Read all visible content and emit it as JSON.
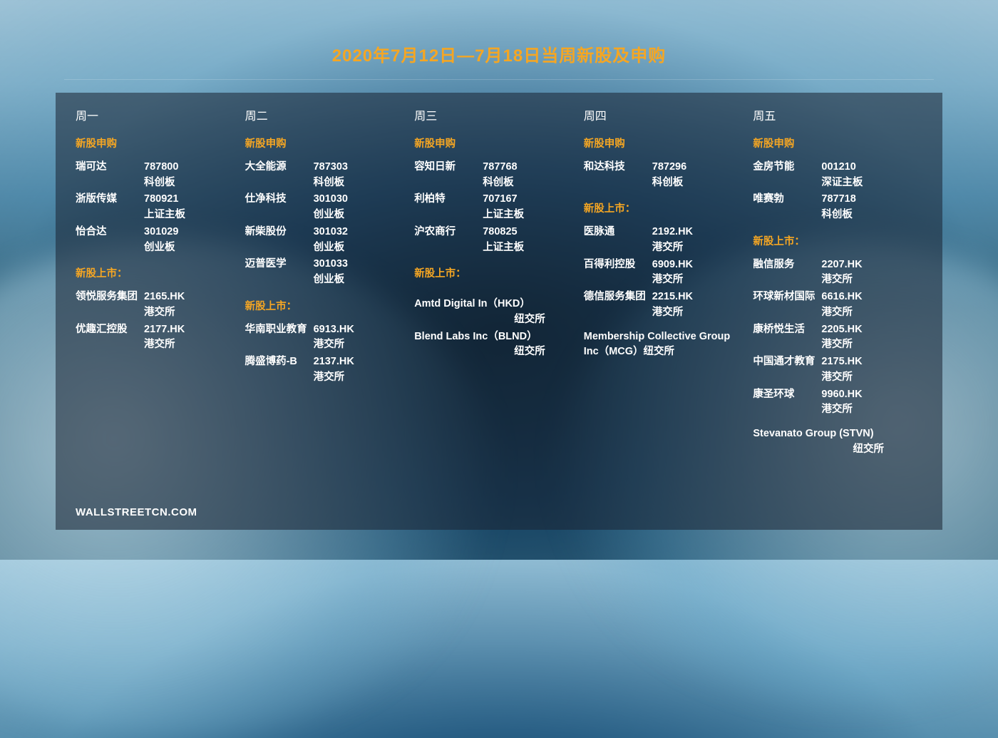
{
  "title": {
    "text": "2020年7月12日—7月18日当周新股及申购",
    "color": "#f5a623"
  },
  "footer": "WALLSTREETCN.COM",
  "colors": {
    "sectionLabel": "#f5a623",
    "text": "#ffffff"
  },
  "labels": {
    "ipoApply": "新股申购",
    "ipoList": "新股上市："
  },
  "days": [
    {
      "name": "周一",
      "apply": [
        {
          "name": "瑞可达",
          "code": "787800",
          "board": "科创板"
        },
        {
          "name": "浙版传媒",
          "code": "780921",
          "board": "上证主板"
        },
        {
          "name": "怡合达",
          "code": "301029",
          "board": "创业板"
        }
      ],
      "list": [
        {
          "name": "领悦服务集团",
          "code": "2165.HK",
          "board": "港交所"
        },
        {
          "name": "优趣汇控股",
          "code": "2177.HK",
          "board": "港交所"
        }
      ]
    },
    {
      "name": "周二",
      "apply": [
        {
          "name": "大全能源",
          "code": "787303",
          "board": "科创板"
        },
        {
          "name": "仕净科技",
          "code": "301030",
          "board": "创业板"
        },
        {
          "name": "新柴股份",
          "code": "301032",
          "board": "创业板"
        },
        {
          "name": "迈普医学",
          "code": "301033",
          "board": "创业板"
        }
      ],
      "list": [
        {
          "name": "华南职业教育",
          "code": "6913.HK",
          "board": "港交所"
        },
        {
          "name": "腾盛博药-B",
          "code": "2137.HK",
          "board": "港交所"
        }
      ]
    },
    {
      "name": "周三",
      "apply": [
        {
          "name": "容知日新",
          "code": "787768",
          "board": "科创板"
        },
        {
          "name": "利柏特",
          "code": "707167",
          "board": "上证主板"
        },
        {
          "name": "沪农商行",
          "code": "780825",
          "board": "上证主板"
        }
      ],
      "listSingle": [
        {
          "line": "Amtd Digital In（HKD）",
          "sub": "纽交所"
        },
        {
          "line": "Blend Labs Inc（BLND）",
          "sub": "纽交所"
        }
      ]
    },
    {
      "name": "周四",
      "apply": [
        {
          "name": "和达科技",
          "code": "787296",
          "board": "科创板"
        }
      ],
      "list": [
        {
          "name": "医脉通",
          "code": "2192.HK",
          "board": "港交所"
        },
        {
          "name": "百得利控股",
          "code": "6909.HK",
          "board": "港交所"
        },
        {
          "name": "德信服务集团",
          "code": "2215.HK",
          "board": "港交所"
        }
      ],
      "listSingle": [
        {
          "line": "Membership Collective Group Inc（MCG）纽交所",
          "sub": ""
        }
      ]
    },
    {
      "name": "周五",
      "apply": [
        {
          "name": "金房节能",
          "code": "001210",
          "board": "深证主板"
        },
        {
          "name": "唯赛勃",
          "code": "787718",
          "board": "科创板"
        }
      ],
      "list": [
        {
          "name": "融信服务",
          "code": "2207.HK",
          "board": "港交所"
        },
        {
          "name": "环球新材国际",
          "code": "6616.HK",
          "board": "港交所"
        },
        {
          "name": "康桥悦生活",
          "code": "2205.HK",
          "board": "港交所"
        },
        {
          "name": "中国通才教育",
          "code": "2175.HK",
          "board": "港交所"
        },
        {
          "name": "康圣环球",
          "code": "9960.HK",
          "board": "港交所"
        }
      ],
      "listSingle": [
        {
          "line": "Stevanato Group (STVN)",
          "sub": "纽交所"
        }
      ]
    }
  ]
}
